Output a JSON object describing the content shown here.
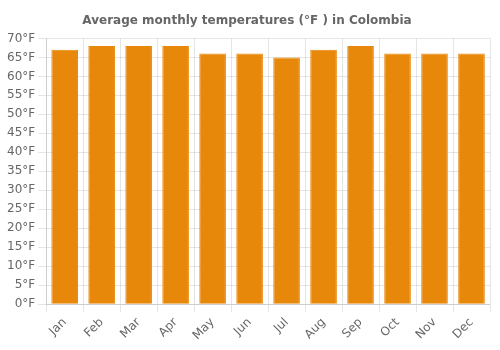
{
  "chart_data": {
    "type": "bar",
    "title": "Average monthly temperatures (°F ) in Colombia",
    "categories": [
      "Jan",
      "Feb",
      "Mar",
      "Apr",
      "May",
      "Jun",
      "Jul",
      "Aug",
      "Sep",
      "Oct",
      "Nov",
      "Dec"
    ],
    "values": [
      67,
      68,
      68,
      68,
      66,
      66,
      65,
      67,
      68,
      66,
      66,
      66
    ],
    "color": "#E8880A",
    "ylim": [
      0,
      70
    ],
    "yticks": [
      {
        "value": 0,
        "label": "0°F"
      },
      {
        "value": 5,
        "label": "5°F"
      },
      {
        "value": 10,
        "label": "10°F"
      },
      {
        "value": 15,
        "label": "15°F"
      },
      {
        "value": 20,
        "label": "20°F"
      },
      {
        "value": 25,
        "label": "25°F"
      },
      {
        "value": 30,
        "label": "30°F"
      },
      {
        "value": 35,
        "label": "35°F"
      },
      {
        "value": 40,
        "label": "40°F"
      },
      {
        "value": 45,
        "label": "45°F"
      },
      {
        "value": 50,
        "label": "50°F"
      },
      {
        "value": 55,
        "label": "55°F"
      },
      {
        "value": 60,
        "label": "60°F"
      },
      {
        "value": 65,
        "label": "65°F"
      },
      {
        "value": 70,
        "label": "70°F"
      }
    ],
    "grid": true
  }
}
